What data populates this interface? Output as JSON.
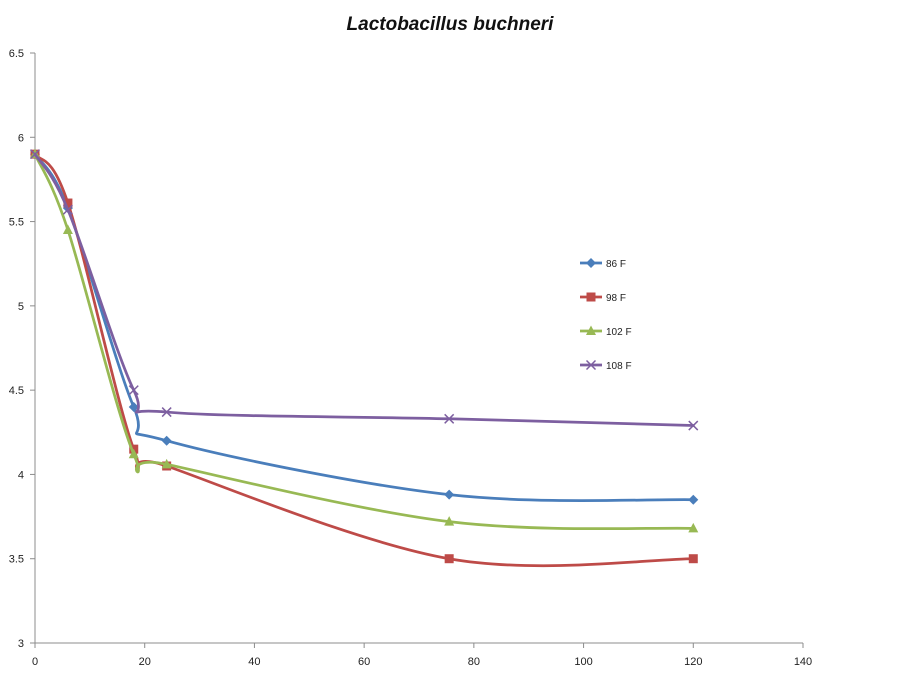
{
  "chart_data": {
    "type": "line",
    "title": "Lactobacillus buchneri",
    "xlabel": "",
    "ylabel": "",
    "xlim": [
      0,
      140
    ],
    "ylim": [
      3,
      6.5
    ],
    "x_ticks": [
      "0",
      "20",
      "40",
      "60",
      "80",
      "100",
      "120",
      "140"
    ],
    "y_ticks": [
      "3",
      "3.5",
      "4",
      "4.5",
      "5",
      "5.5",
      "6",
      "6.5"
    ],
    "grid": false,
    "legend_position": "right",
    "series": [
      {
        "name": "86 F",
        "color": "#4a7ebb",
        "marker": "diamond",
        "points": [
          [
            0,
            5.9
          ],
          [
            6,
            5.58
          ],
          [
            18,
            4.4
          ],
          [
            24,
            4.2
          ],
          [
            75.5,
            3.88
          ],
          [
            120,
            3.85
          ]
        ]
      },
      {
        "name": "98 F",
        "color": "#be4b48",
        "marker": "square",
        "points": [
          [
            0,
            5.9
          ],
          [
            6,
            5.61
          ],
          [
            18,
            4.15
          ],
          [
            24,
            4.05
          ],
          [
            75.5,
            3.5
          ],
          [
            120,
            3.5
          ]
        ]
      },
      {
        "name": "102 F",
        "color": "#98b954",
        "marker": "triangle",
        "points": [
          [
            0,
            5.9
          ],
          [
            6,
            5.45
          ],
          [
            18,
            4.12
          ],
          [
            24,
            4.06
          ],
          [
            75.5,
            3.72
          ],
          [
            120,
            3.68
          ]
        ]
      },
      {
        "name": "108 F",
        "color": "#7d5fa0",
        "marker": "x",
        "points": [
          [
            0,
            5.9
          ],
          [
            6,
            5.57
          ],
          [
            18,
            4.5
          ],
          [
            24,
            4.37
          ],
          [
            75.5,
            4.33
          ],
          [
            120,
            4.29
          ]
        ]
      }
    ]
  }
}
